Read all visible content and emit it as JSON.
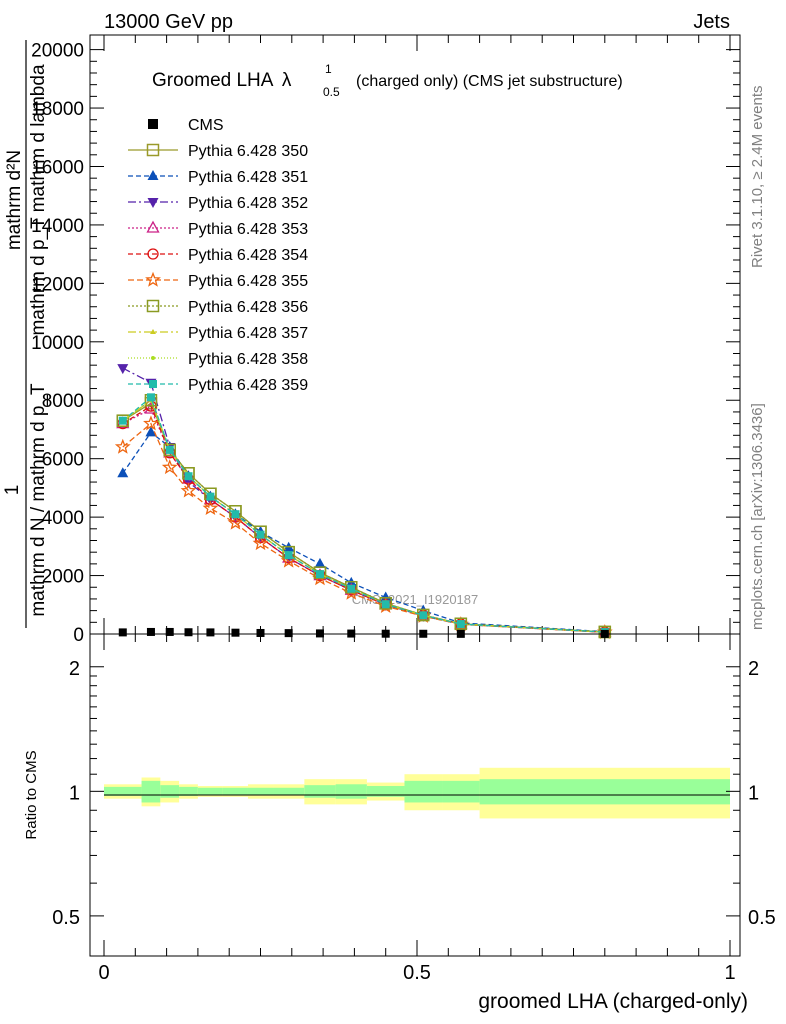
{
  "header": {
    "energy_label": "13000 GeV pp",
    "category_label": "Jets"
  },
  "side_texts": {
    "rivet": "Rivet 3.1.10, ≥ 2.4M events",
    "mcplots": "mcplots.cern.ch [arXiv:1306.3436]"
  },
  "watermark": "CMS_2021_I1920187",
  "chart_data": [
    {
      "type": "line",
      "title_prefix": "Groomed LHA",
      "title_symbol": "λ",
      "title_sup": "1",
      "title_sub": "0.5",
      "title_suffix": "(charged only) (CMS jet substructure)",
      "ylabel_line1": "mathrm d²N",
      "ylabel_line2": "mathrm d p_T mathrm d lambda",
      "ylabel_frac_top": "1",
      "ylabel_frac_bottom": "mathrm d N / mathrm d p_T",
      "ylim": [
        0,
        20500
      ],
      "yticks": [
        0,
        2000,
        4000,
        6000,
        8000,
        10000,
        12000,
        14000,
        16000,
        18000,
        20000
      ],
      "ytick_labels": [
        "0",
        "2000",
        "4000",
        "6000",
        "8000",
        "10000",
        "12000",
        "14000",
        "16000",
        "18000",
        "20000"
      ],
      "xlim": [
        0,
        1
      ],
      "x": [
        0.03,
        0.075,
        0.105,
        0.135,
        0.17,
        0.21,
        0.25,
        0.295,
        0.345,
        0.395,
        0.45,
        0.51,
        0.57,
        0.8
      ],
      "cms_values": [
        55,
        70,
        70,
        60,
        55,
        45,
        35,
        30,
        20,
        15,
        10,
        8,
        5,
        3
      ],
      "series": [
        {
          "name": "Pythia 6.428 350",
          "color": "#9a9a2a",
          "marker": "square-open",
          "dash": "",
          "values": [
            7300,
            7900,
            6300,
            5500,
            4800,
            4200,
            3500,
            2800,
            2100,
            1600,
            1050,
            650,
            350,
            70
          ]
        },
        {
          "name": "Pythia 6.428 351",
          "color": "#0b4fb8",
          "marker": "triangle-up",
          "dash": "5,3",
          "values": [
            5500,
            6900,
            6400,
            5400,
            4700,
            4100,
            3500,
            2950,
            2400,
            1750,
            1250,
            800,
            380,
            80
          ]
        },
        {
          "name": "Pythia 6.428 352",
          "color": "#5522aa",
          "marker": "triangle-down",
          "dash": "8,3,2,3",
          "values": [
            9100,
            8600,
            6400,
            5200,
            4600,
            4000,
            3300,
            2600,
            2000,
            1500,
            1000,
            620,
            330,
            60
          ]
        },
        {
          "name": "Pythia 6.428 353",
          "color": "#cc2288",
          "marker": "triangle-open",
          "dash": "2,2",
          "values": [
            7200,
            7700,
            6200,
            5300,
            4600,
            4000,
            3300,
            2600,
            2000,
            1500,
            1000,
            640,
            340,
            60
          ]
        },
        {
          "name": "Pythia 6.428 354",
          "color": "#dd1111",
          "marker": "circle-open",
          "dash": "5,3",
          "values": [
            7200,
            7800,
            6200,
            5300,
            4600,
            4000,
            3300,
            2600,
            2000,
            1500,
            1000,
            640,
            340,
            60
          ]
        },
        {
          "name": "Pythia 6.428 355",
          "color": "#ee6611",
          "marker": "star-open",
          "dash": "6,3",
          "values": [
            6400,
            7200,
            5700,
            4900,
            4300,
            3800,
            3100,
            2500,
            1900,
            1400,
            950,
            610,
            330,
            60
          ]
        },
        {
          "name": "Pythia 6.428 356",
          "color": "#8a9a22",
          "marker": "square-open",
          "dash": "2,2",
          "values": [
            7300,
            8000,
            6300,
            5500,
            4800,
            4200,
            3500,
            2800,
            2100,
            1600,
            1050,
            650,
            350,
            70
          ]
        },
        {
          "name": "Pythia 6.428 357",
          "color": "#cccc22",
          "marker": "tri-small",
          "dash": "8,3,2,3",
          "values": [
            7300,
            8000,
            6300,
            5400,
            4700,
            4100,
            3400,
            2700,
            2050,
            1550,
            1020,
            640,
            340,
            65
          ]
        },
        {
          "name": "Pythia 6.428 358",
          "color": "#aadd22",
          "marker": "dot",
          "dash": "1,2",
          "values": [
            7300,
            8000,
            6300,
            5400,
            4700,
            4100,
            3400,
            2700,
            2050,
            1550,
            1020,
            640,
            340,
            65
          ]
        },
        {
          "name": "Pythia 6.428 359",
          "color": "#22bbaa",
          "marker": "square-fill",
          "dash": "5,3",
          "values": [
            7300,
            8100,
            6300,
            5400,
            4700,
            4100,
            3400,
            2700,
            2050,
            1550,
            1020,
            640,
            340,
            65
          ]
        }
      ],
      "legend_data_label": "CMS"
    },
    {
      "type": "area",
      "ylabel": "Ratio to CMS",
      "xlabel": "groomed LHA (charged-only)",
      "ylim": [
        0.4,
        2.4
      ],
      "yticks": [
        0.5,
        1,
        2
      ],
      "ytick_labels": [
        "0.5",
        "1",
        "2"
      ],
      "xticks": [
        0,
        0.5,
        1
      ],
      "xtick_labels": [
        "0",
        "0.5",
        "1"
      ],
      "bin_edges": [
        0,
        0.06,
        0.09,
        0.12,
        0.15,
        0.19,
        0.23,
        0.27,
        0.32,
        0.37,
        0.42,
        0.48,
        0.54,
        0.6,
        1.0
      ],
      "band_inner": [
        0.025,
        0.06,
        0.035,
        0.025,
        0.02,
        0.02,
        0.02,
        0.02,
        0.035,
        0.04,
        0.03,
        0.06,
        0.06,
        0.07
      ],
      "band_outer": [
        0.04,
        0.08,
        0.06,
        0.04,
        0.03,
        0.03,
        0.04,
        0.04,
        0.07,
        0.07,
        0.05,
        0.1,
        0.1,
        0.14
      ],
      "inner_color": "#99ff99",
      "outer_color": "#ffff99"
    }
  ]
}
